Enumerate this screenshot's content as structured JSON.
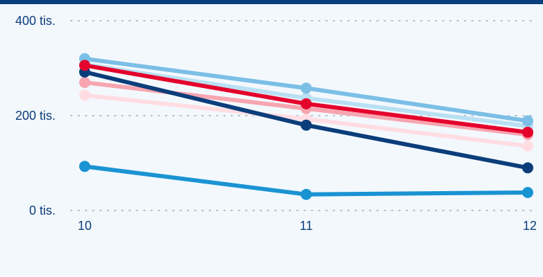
{
  "chart_data": {
    "type": "line",
    "title": "",
    "xlabel": "",
    "ylabel": "",
    "x": [
      "10",
      "11",
      "12"
    ],
    "yticks": [
      {
        "value": 0,
        "label": "0 tis."
      },
      {
        "value": 200000,
        "label": "200 tis."
      },
      {
        "value": 400000,
        "label": "400 tis."
      }
    ],
    "ylim": [
      0,
      400000
    ],
    "grid": true,
    "legend": "none",
    "top_rule_color": "#08407e",
    "series": [
      {
        "color": "#ffdde3",
        "values": [
          243000,
          193000,
          136000
        ]
      },
      {
        "color": "#f7a5b0",
        "values": [
          270000,
          215000,
          160000
        ]
      },
      {
        "color": "#b9e0f2",
        "values": [
          308000,
          237000,
          178000
        ]
      },
      {
        "color": "#7bbfe6",
        "values": [
          320000,
          258000,
          189000
        ]
      },
      {
        "color": "#0b3d7a",
        "values": [
          292000,
          180000,
          90000
        ]
      },
      {
        "color": "#e4032c",
        "values": [
          306000,
          225000,
          165000
        ]
      },
      {
        "color": "#1a93d3",
        "values": [
          93000,
          34000,
          38000
        ]
      }
    ]
  }
}
